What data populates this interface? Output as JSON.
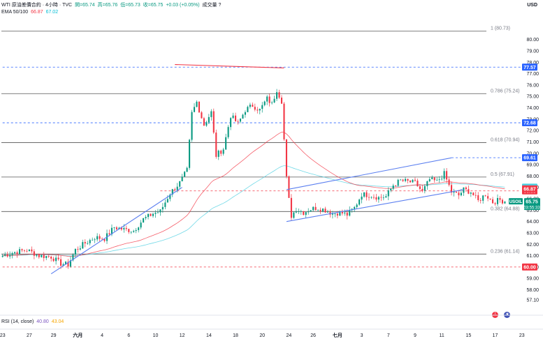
{
  "header": {
    "title": "WTI 原油差價合約 · 4小時 · TVC",
    "open": "開=65.74",
    "high": "高=65.76",
    "low": "低=65.73",
    "close": "收=65.75",
    "change": "+0.03 (+0.05%)",
    "volume": "成交量 ?",
    "ema_label": "EMA 50/100",
    "ema_values": [
      "66.87",
      "67.02"
    ],
    "rsi_label": "RSI (14, close)",
    "rsi_values": [
      "40.80",
      "43.04"
    ]
  },
  "currency": "USD",
  "colors": {
    "up": "#089981",
    "down": "#f23645",
    "ema50": "#f23645",
    "ema100": "#4dd0e1",
    "channel": "#5b7ff0",
    "fib": "#555555",
    "red_line": "#f23645",
    "blue_line": "#2962ff"
  },
  "chart_data": {
    "type": "candlestick",
    "symbol": "WTI",
    "timeframe": "4H",
    "ylim": [
      56.5,
      82
    ],
    "y_ticks": [
      57.1,
      58,
      59,
      60,
      61,
      62,
      63,
      64,
      65,
      66,
      67,
      68,
      69,
      70,
      71,
      72,
      73,
      74,
      75,
      76,
      77,
      78,
      79,
      80
    ],
    "y_tick_labels": [
      "57.10",
      "58.00",
      "59.00",
      "60.00",
      "61.00",
      "62.00",
      "63.00",
      "64.00",
      "65.00",
      "66.00",
      "67.00",
      "68.00",
      "69.00",
      "70.00",
      "71.00",
      "72.00",
      "73.00",
      "74.00",
      "75.00",
      "76.00",
      "77.00",
      "78.00",
      "79.00",
      "80.00"
    ],
    "y_tick_values_labeled": [
      57.1,
      58,
      59,
      60,
      61,
      62,
      63,
      64,
      65,
      66,
      67,
      68,
      69,
      70,
      71,
      72,
      73,
      74,
      75,
      76,
      77,
      78,
      79,
      80
    ],
    "x_ticks": [
      {
        "label": "23",
        "i": 0
      },
      {
        "label": "27",
        "i": 11
      },
      {
        "label": "29",
        "i": 21
      },
      {
        "label": "六月",
        "i": 31
      },
      {
        "label": "4",
        "i": 41
      },
      {
        "label": "6",
        "i": 52
      },
      {
        "label": "10",
        "i": 63
      },
      {
        "label": "12",
        "i": 74
      },
      {
        "label": "14",
        "i": 85
      },
      {
        "label": "18",
        "i": 96
      },
      {
        "label": "20",
        "i": 107
      },
      {
        "label": "24",
        "i": 118
      },
      {
        "label": "26",
        "i": 128
      },
      {
        "label": "七月",
        "i": 138
      },
      {
        "label": "3",
        "i": 148
      },
      {
        "label": "7",
        "i": 159
      },
      {
        "label": "9",
        "i": 170
      },
      {
        "label": "11",
        "i": 181
      },
      {
        "label": "15",
        "i": 192
      },
      {
        "label": "17",
        "i": 203
      },
      {
        "label": "23",
        "i": 214
      }
    ],
    "close_series_anchors": [
      [
        0,
        61.0
      ],
      [
        5,
        61.3
      ],
      [
        10,
        61.5
      ],
      [
        15,
        61.0
      ],
      [
        20,
        60.9
      ],
      [
        24,
        60.3
      ],
      [
        27,
        60.2
      ],
      [
        30,
        61.5
      ],
      [
        34,
        62.1
      ],
      [
        38,
        62.6
      ],
      [
        42,
        62.5
      ],
      [
        46,
        63.5
      ],
      [
        50,
        63.3
      ],
      [
        54,
        63.2
      ],
      [
        58,
        64.2
      ],
      [
        62,
        64.7
      ],
      [
        65,
        64.9
      ],
      [
        69,
        66.5
      ],
      [
        73,
        67.4
      ],
      [
        76,
        68.5
      ],
      [
        78,
        73.5
      ],
      [
        80,
        74.5
      ],
      [
        83,
        72.5
      ],
      [
        86,
        73.6
      ],
      [
        88,
        69.8
      ],
      [
        91,
        70.4
      ],
      [
        94,
        73.3
      ],
      [
        97,
        72.6
      ],
      [
        100,
        73.8
      ],
      [
        103,
        74.2
      ],
      [
        106,
        73.8
      ],
      [
        109,
        74.8
      ],
      [
        111,
        74.3
      ],
      [
        113,
        75.6
      ],
      [
        115,
        74.6
      ],
      [
        116,
        71.2
      ],
      [
        117,
        67.8
      ],
      [
        118,
        65.9
      ],
      [
        119,
        64.5
      ],
      [
        121,
        65.1
      ],
      [
        124,
        64.8
      ],
      [
        127,
        65.1
      ],
      [
        130,
        65.2
      ],
      [
        133,
        65.0
      ],
      [
        136,
        64.7
      ],
      [
        139,
        64.8
      ],
      [
        142,
        64.6
      ],
      [
        145,
        65.2
      ],
      [
        148,
        66.4
      ],
      [
        152,
        66.3
      ],
      [
        155,
        66.1
      ],
      [
        158,
        66.2
      ],
      [
        161,
        67.2
      ],
      [
        164,
        67.6
      ],
      [
        167,
        67.5
      ],
      [
        170,
        67.4
      ],
      [
        173,
        66.6
      ],
      [
        176,
        67.7
      ],
      [
        179,
        67.5
      ],
      [
        182,
        68.2
      ],
      [
        185,
        66.6
      ],
      [
        188,
        66.3
      ],
      [
        190,
        66.8
      ],
      [
        193,
        66.6
      ],
      [
        196,
        65.8
      ],
      [
        199,
        66.4
      ],
      [
        202,
        65.7
      ],
      [
        205,
        65.9
      ],
      [
        207,
        65.75
      ]
    ],
    "last_price": 65.75,
    "ema50_last": 66.87,
    "ema100_last": 67.02,
    "fib_levels": [
      {
        "ratio": "1",
        "value": 80.73,
        "label": "1 (80.73)"
      },
      {
        "ratio": "0.786",
        "value": 75.24,
        "label": "0.786 (75.24)"
      },
      {
        "ratio": "0.618",
        "value": 70.94,
        "label": "0.618 (70.94)"
      },
      {
        "ratio": "0.5",
        "value": 67.91,
        "label": "0.5 (67.91)"
      },
      {
        "ratio": "0.382",
        "value": 64.88,
        "label": "0.382 (64.88)"
      },
      {
        "ratio": "0.236",
        "value": 61.14,
        "label": "0.236 (61.14)"
      }
    ],
    "dashed_levels": [
      {
        "value": 77.57,
        "label": "77.57",
        "color": "#2962ff",
        "from_i": 0
      },
      {
        "value": 72.68,
        "label": "72.68",
        "color": "#2962ff",
        "from_i": 0
      },
      {
        "value": 69.61,
        "label": "69.61",
        "color": "#2962ff",
        "from_i": 185
      },
      {
        "value": 66.69,
        "label": "66.69",
        "color": "#f23645",
        "from_i": 65
      },
      {
        "value": 60.0,
        "label": "60.00",
        "color": "#f23645",
        "from_i": 0
      }
    ],
    "price_tags": [
      {
        "value": 67.02,
        "label": "67.02",
        "color": "#4dd0e1"
      },
      {
        "value": 66.87,
        "label": "66.87",
        "color": "#f23645"
      },
      {
        "value": 65.75,
        "label": "65.75",
        "color": "#089981",
        "symbol": "USOIL",
        "countdown": "03:55:33"
      }
    ],
    "trendlines": [
      {
        "name": "support",
        "color": "#5b7ff0",
        "points": [
          [
            20,
            59.4
          ],
          [
            74,
            67.0
          ]
        ]
      },
      {
        "name": "top",
        "color": "#f23645",
        "points": [
          [
            71,
            77.8
          ],
          [
            116,
            77.5
          ]
        ]
      },
      {
        "name": "channel-upper",
        "color": "#5b7ff0",
        "points": [
          [
            117,
            66.8
          ],
          [
            185,
            69.6
          ]
        ]
      },
      {
        "name": "channel-lower",
        "color": "#5b7ff0",
        "points": [
          [
            117,
            64.0
          ],
          [
            190,
            66.8
          ]
        ]
      }
    ]
  }
}
